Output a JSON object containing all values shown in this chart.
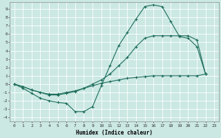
{
  "xlabel": "Humidex (Indice chaleur)",
  "bg_color": "#cbe8e3",
  "grid_color": "#ffffff",
  "line_color": "#1a6b5a",
  "xlim": [
    -0.5,
    23.5
  ],
  "ylim": [
    -4.5,
    9.8
  ],
  "xticks": [
    0,
    1,
    2,
    3,
    4,
    5,
    6,
    7,
    8,
    9,
    10,
    11,
    12,
    13,
    14,
    15,
    16,
    17,
    18,
    19,
    20,
    21,
    22,
    23
  ],
  "yticks": [
    -4,
    -3,
    -2,
    -1,
    0,
    1,
    2,
    3,
    4,
    5,
    6,
    7,
    8,
    9
  ],
  "line_top_x": [
    0,
    1,
    2,
    3,
    4,
    5,
    6,
    7,
    8,
    9,
    10,
    11,
    12,
    13,
    14,
    15,
    16,
    17,
    18,
    19,
    20,
    21,
    22
  ],
  "line_top_y": [
    0,
    -0.5,
    -1.1,
    -1.7,
    -2.0,
    -2.2,
    -2.3,
    -3.3,
    -3.3,
    -2.7,
    -0.2,
    2.2,
    4.6,
    6.2,
    7.8,
    9.3,
    9.5,
    9.3,
    7.5,
    5.7,
    5.5,
    4.5,
    1.2
  ],
  "line_mid_x": [
    0,
    1,
    2,
    3,
    4,
    5,
    6,
    7,
    8,
    9,
    10,
    11,
    12,
    13,
    14,
    15,
    16,
    17,
    18,
    19,
    20,
    21,
    22
  ],
  "line_mid_y": [
    0,
    -0.3,
    -0.7,
    -1.0,
    -1.3,
    -1.3,
    -1.1,
    -0.9,
    -0.5,
    0.0,
    0.5,
    1.2,
    2.2,
    3.2,
    4.5,
    5.5,
    5.8,
    5.8,
    5.8,
    5.8,
    5.8,
    5.3,
    1.2
  ],
  "line_bot_x": [
    0,
    1,
    2,
    3,
    4,
    5,
    6,
    7,
    8,
    9,
    10,
    11,
    12,
    13,
    14,
    15,
    16,
    17,
    18,
    19,
    20,
    21,
    22
  ],
  "line_bot_y": [
    0,
    -0.3,
    -0.7,
    -1.0,
    -1.2,
    -1.2,
    -1.0,
    -0.8,
    -0.5,
    -0.2,
    0.1,
    0.3,
    0.5,
    0.7,
    0.8,
    0.9,
    1.0,
    1.0,
    1.0,
    1.0,
    1.0,
    1.0,
    1.2
  ]
}
